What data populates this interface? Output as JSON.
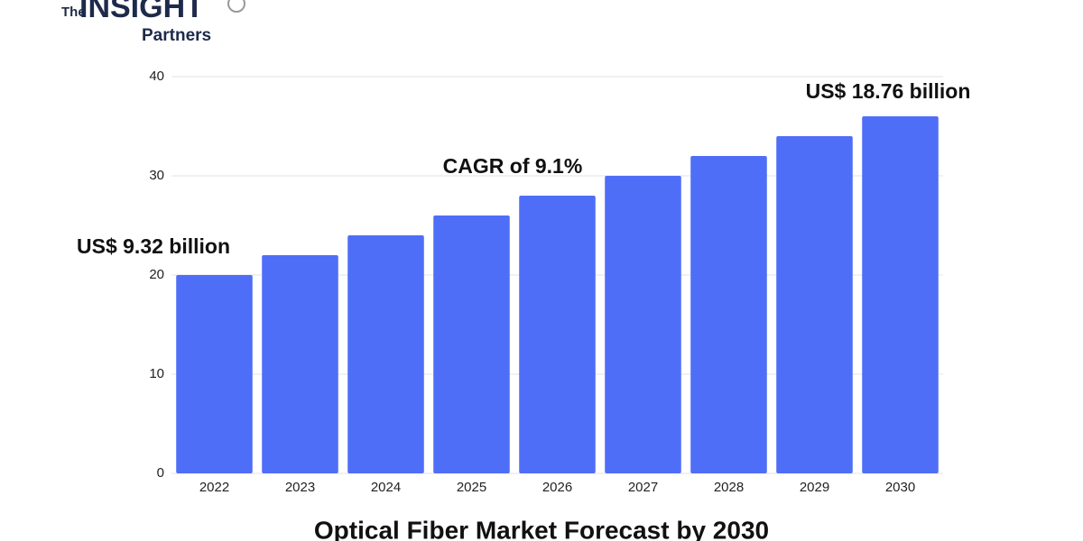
{
  "logo": {
    "prefix": "The",
    "name": "INSIGHT",
    "suffix": "Partners"
  },
  "chart_data": {
    "type": "bar",
    "title": "Optical Fiber Market Forecast by 2030",
    "categories": [
      "2022",
      "2023",
      "2024",
      "2025",
      "2026",
      "2027",
      "2028",
      "2029",
      "2030"
    ],
    "values": [
      20,
      22,
      24,
      26,
      28,
      30,
      32,
      34,
      36
    ],
    "color": "#4f6ef7",
    "ylim": [
      0,
      40
    ],
    "yticks": [
      0,
      10,
      20,
      30,
      40
    ],
    "grid": true,
    "annotations": [
      "US$ 9.32 billion",
      "CAGR of 9.1%",
      "US$ 18.76 billion"
    ]
  }
}
